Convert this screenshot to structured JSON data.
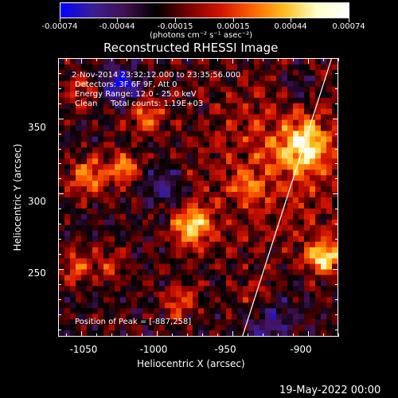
{
  "colorbar": {
    "tick_labels": [
      "-0.00074",
      "-0.00044",
      "-0.00015",
      "0.00015",
      "0.00044",
      "0.00074"
    ],
    "unit_label": "(photons cm⁻² s⁻¹ asec⁻²)",
    "colors": [
      "#0000ff",
      "#3c1e96",
      "#401050",
      "#000000",
      "#780000",
      "#d21400",
      "#ff6400",
      "#ffbe1e",
      "#ffffc8",
      "#ffffff"
    ]
  },
  "plot": {
    "title": "Reconstructed RHESSI Image",
    "annotations": {
      "time_range": "2-Nov-2014 23:32:12.000 to 23:35:56.000",
      "detectors": "Detectors: 3F 6F 9F, Att 0",
      "energy_range": "Energy Range: 12.0 - 25.0 keV",
      "clean": "Clean",
      "total_counts": "Total counts: 1.19E+03",
      "peak_position": "Position of Peak = [-887,258]"
    },
    "limb_color": "#ffffff"
  },
  "chart_data": {
    "type": "heatmap",
    "title": "Reconstructed RHESSI Image",
    "xlabel": "Heliocentric X (arcsec)",
    "ylabel": "Heliocentric Y (arcsec)",
    "x_tick_labels": [
      "-1050",
      "-1000",
      "-950",
      "-900"
    ],
    "y_tick_labels": [
      "250",
      "300",
      "350"
    ],
    "xlim": [
      -1065,
      -880
    ],
    "ylim": [
      205,
      390
    ],
    "xticks": [
      -1050,
      -1000,
      -950,
      -900
    ],
    "yticks": [
      250,
      300,
      350
    ],
    "x_minor_step": 10,
    "y_minor_step": 10,
    "value_range": [
      -0.00074,
      0.00074
    ],
    "peak": [
      -887,
      258
    ],
    "sources": [
      {
        "x": -920,
        "y": 320,
        "sigma": 40,
        "amp": 0.00028
      },
      {
        "x": -977,
        "y": 278,
        "sigma": 9,
        "amp": 0.00066
      },
      {
        "x": -902,
        "y": 332,
        "sigma": 11,
        "amp": 0.00062
      },
      {
        "x": -889,
        "y": 258,
        "sigma": 8,
        "amp": 0.0007
      },
      {
        "x": -1045,
        "y": 312,
        "sigma": 9,
        "amp": 0.00052
      },
      {
        "x": -1022,
        "y": 318,
        "sigma": 7,
        "amp": 0.00052
      },
      {
        "x": -1053,
        "y": 251,
        "sigma": 8,
        "amp": 0.00038
      },
      {
        "x": -1007,
        "y": 352,
        "sigma": 8,
        "amp": 0.00046
      },
      {
        "x": -1030,
        "y": 252,
        "sigma": 7,
        "amp": 0.00034
      },
      {
        "x": -985,
        "y": 228,
        "sigma": 8,
        "amp": 0.00038
      },
      {
        "x": -940,
        "y": 305,
        "sigma": 7,
        "amp": 0.00028
      },
      {
        "x": -935,
        "y": 232,
        "sigma": 9,
        "amp": 0.00026
      },
      {
        "x": -1050,
        "y": 370,
        "sigma": 8,
        "amp": 0.0003
      },
      {
        "x": -1025,
        "y": 372,
        "sigma": 9,
        "amp": -0.0005
      },
      {
        "x": -995,
        "y": 305,
        "sigma": 9,
        "amp": -0.00032
      },
      {
        "x": -925,
        "y": 215,
        "sigma": 12,
        "amp": -0.0003
      },
      {
        "x": -905,
        "y": 372,
        "sigma": 8,
        "amp": -0.00024
      }
    ],
    "limb_line": {
      "x": [
        -943,
        -884
      ],
      "y": [
        205,
        390
      ]
    }
  },
  "footer": {
    "date": "19-May-2022 00:00"
  }
}
